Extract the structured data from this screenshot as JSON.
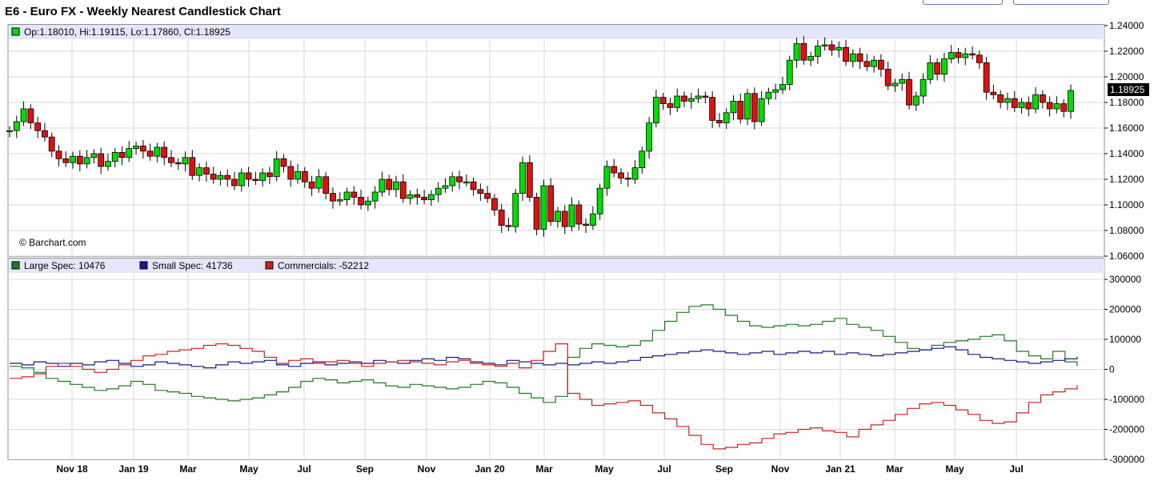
{
  "title": "E6 - Euro FX - Weekly Nearest Candlestick Chart",
  "watermark": "© Barchart.com",
  "colors": {
    "up": "#00dd00",
    "down": "#dd1111",
    "header_band": "#e4e6fa",
    "large_spec": "#1e7d1e",
    "small_spec": "#1a1a8c",
    "commercials": "#cc2222",
    "grid": "#d9d9d9",
    "last_price_bg": "#000000"
  },
  "chart_data": [
    {
      "type": "candlestick",
      "title": "E6 - Euro FX - Weekly Nearest Candlestick Chart",
      "ohlc_label": "Op:1.18010, Hi:1.19115, Lo:1.17860, Cl:1.18925",
      "last_price": "1.18925",
      "ylim": [
        1.06,
        1.24
      ],
      "y_ticks": [
        "1.24000",
        "1.22000",
        "1.20000",
        "1.18000",
        "1.16000",
        "1.14000",
        "1.12000",
        "1.10000",
        "1.08000",
        "1.06000"
      ],
      "x_labels": [
        "Nov 18",
        "Jan 19",
        "Mar",
        "May",
        "Jul",
        "Sep",
        "Nov",
        "Jan 20",
        "Mar",
        "May",
        "Jul",
        "Sep",
        "Nov",
        "Jan 21",
        "Mar",
        "May",
        "Jul"
      ],
      "grid": true,
      "closes": [
        1.158,
        1.165,
        1.175,
        1.164,
        1.158,
        1.153,
        1.142,
        1.136,
        1.133,
        1.138,
        1.132,
        1.137,
        1.14,
        1.13,
        1.134,
        1.141,
        1.137,
        1.144,
        1.146,
        1.142,
        1.138,
        1.145,
        1.137,
        1.133,
        1.132,
        1.137,
        1.123,
        1.129,
        1.124,
        1.12,
        1.123,
        1.12,
        1.115,
        1.125,
        1.12,
        1.119,
        1.125,
        1.122,
        1.136,
        1.13,
        1.12,
        1.126,
        1.118,
        1.113,
        1.122,
        1.109,
        1.103,
        1.104,
        1.11,
        1.106,
        1.1,
        1.103,
        1.11,
        1.12,
        1.112,
        1.118,
        1.105,
        1.108,
        1.106,
        1.104,
        1.108,
        1.113,
        1.115,
        1.122,
        1.118,
        1.118,
        1.112,
        1.109,
        1.105,
        1.096,
        1.084,
        1.083,
        1.109,
        1.133,
        1.106,
        1.081,
        1.115,
        1.087,
        1.095,
        1.083,
        1.1,
        1.085,
        1.084,
        1.093,
        1.113,
        1.13,
        1.125,
        1.121,
        1.12,
        1.129,
        1.142,
        1.164,
        1.184,
        1.179,
        1.176,
        1.185,
        1.181,
        1.183,
        1.185,
        1.184,
        1.166,
        1.164,
        1.172,
        1.181,
        1.167,
        1.187,
        1.165,
        1.183,
        1.188,
        1.19,
        1.194,
        1.213,
        1.226,
        1.213,
        1.216,
        1.224,
        1.225,
        1.221,
        1.223,
        1.212,
        1.218,
        1.212,
        1.208,
        1.213,
        1.206,
        1.193,
        1.195,
        1.198,
        1.178,
        1.185,
        1.198,
        1.211,
        1.202,
        1.214,
        1.219,
        1.215,
        1.218,
        1.217,
        1.211,
        1.188,
        1.186,
        1.18,
        1.183,
        1.176,
        1.18,
        1.175,
        1.186,
        1.18,
        1.175,
        1.179,
        1.173,
        1.1893
      ]
    },
    {
      "type": "line",
      "legend": [
        {
          "name": "Large Spec",
          "value": "10476"
        },
        {
          "name": "Small Spec",
          "value": "41736"
        },
        {
          "name": "Commercials",
          "value": "-52212"
        }
      ],
      "ylim": [
        -300000,
        300000
      ],
      "y_ticks": [
        "300000",
        "200000",
        "100000",
        "0",
        "-100000",
        "-200000",
        "-300000"
      ],
      "series": [
        {
          "name": "Large Spec",
          "values": [
            10000,
            5000,
            -10000,
            -30000,
            -40000,
            -50000,
            -60000,
            -70000,
            -65000,
            -55000,
            -40000,
            -50000,
            -70000,
            -75000,
            -80000,
            -90000,
            -95000,
            -100000,
            -105000,
            -100000,
            -95000,
            -85000,
            -75000,
            -60000,
            -40000,
            -30000,
            -35000,
            -45000,
            -40000,
            -35000,
            -45000,
            -55000,
            -60000,
            -50000,
            -55000,
            -60000,
            -65000,
            -60000,
            -50000,
            -40000,
            -45000,
            -60000,
            -80000,
            -95000,
            -110000,
            -90000,
            40000,
            70000,
            85000,
            80000,
            75000,
            80000,
            95000,
            130000,
            160000,
            190000,
            210000,
            215000,
            200000,
            180000,
            160000,
            145000,
            140000,
            145000,
            150000,
            145000,
            150000,
            160000,
            170000,
            150000,
            140000,
            130000,
            110000,
            90000,
            70000,
            65000,
            80000,
            90000,
            95000,
            100000,
            110000,
            115000,
            95000,
            60000,
            45000,
            35000,
            60000,
            25000,
            10476
          ]
        },
        {
          "name": "Small Spec",
          "values": [
            20000,
            15000,
            25000,
            20000,
            10000,
            20000,
            15000,
            25000,
            30000,
            20000,
            10000,
            15000,
            25000,
            20000,
            15000,
            10000,
            5000,
            15000,
            25000,
            20000,
            25000,
            30000,
            15000,
            10000,
            20000,
            25000,
            15000,
            20000,
            25000,
            20000,
            30000,
            25000,
            20000,
            30000,
            35000,
            30000,
            40000,
            35000,
            25000,
            20000,
            15000,
            30000,
            25000,
            20000,
            15000,
            20000,
            15000,
            20000,
            25000,
            20000,
            25000,
            30000,
            40000,
            45000,
            50000,
            55000,
            60000,
            65000,
            60000,
            55000,
            50000,
            55000,
            60000,
            50000,
            55000,
            60000,
            55000,
            60000,
            50000,
            55000,
            50000,
            45000,
            50000,
            55000,
            60000,
            65000,
            70000,
            75000,
            65000,
            50000,
            40000,
            35000,
            30000,
            25000,
            20000,
            25000,
            30000,
            35000,
            41736
          ]
        },
        {
          "name": "Commercials",
          "values": [
            -30000,
            -25000,
            -15000,
            10000,
            20000,
            10000,
            0,
            -10000,
            0,
            15000,
            30000,
            45000,
            50000,
            60000,
            65000,
            70000,
            80000,
            85000,
            80000,
            70000,
            60000,
            40000,
            20000,
            30000,
            35000,
            20000,
            25000,
            30000,
            20000,
            10000,
            20000,
            25000,
            30000,
            25000,
            20000,
            15000,
            25000,
            30000,
            20000,
            15000,
            10000,
            20000,
            5000,
            30000,
            60000,
            85000,
            -80000,
            -100000,
            -120000,
            -115000,
            -110000,
            -105000,
            -120000,
            -145000,
            -165000,
            -190000,
            -220000,
            -250000,
            -265000,
            -260000,
            -250000,
            -245000,
            -230000,
            -215000,
            -210000,
            -200000,
            -195000,
            -205000,
            -210000,
            -225000,
            -200000,
            -185000,
            -170000,
            -150000,
            -130000,
            -115000,
            -110000,
            -120000,
            -135000,
            -150000,
            -170000,
            -180000,
            -175000,
            -145000,
            -110000,
            -85000,
            -75000,
            -65000,
            -52212
          ]
        }
      ]
    }
  ]
}
